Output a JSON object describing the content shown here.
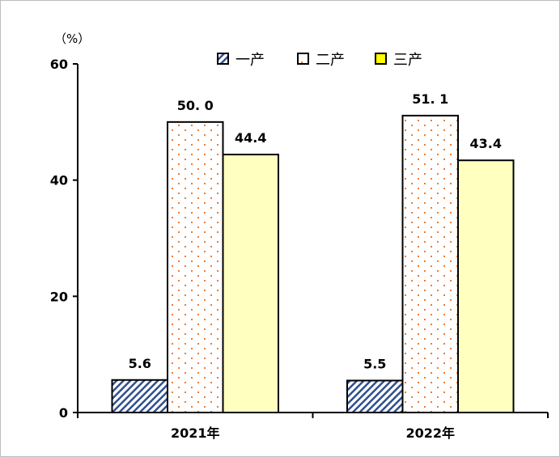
{
  "chart_data": {
    "type": "bar",
    "ylabel": "（%）",
    "ylim": [
      0,
      60
    ],
    "yticks": [
      0,
      20,
      40,
      60
    ],
    "categories": [
      "2021年",
      "2022年"
    ],
    "series": [
      {
        "name": "一产",
        "values": [
          5.6,
          5.5
        ],
        "labels": [
          "5.6",
          "5.5"
        ],
        "fill": "hatch",
        "color": "#2f4f8f"
      },
      {
        "name": "二产",
        "values": [
          50.0,
          51.1
        ],
        "labels": [
          "50. 0",
          "51. 1"
        ],
        "fill": "dots",
        "color": "#f07c30"
      },
      {
        "name": "三产",
        "values": [
          44.4,
          43.4
        ],
        "labels": [
          "44.4",
          "43.4"
        ],
        "fill": "solid",
        "color": "#ffffc0",
        "legend_color": "#ffff00"
      }
    ],
    "legend": "top-right",
    "grid": false
  }
}
